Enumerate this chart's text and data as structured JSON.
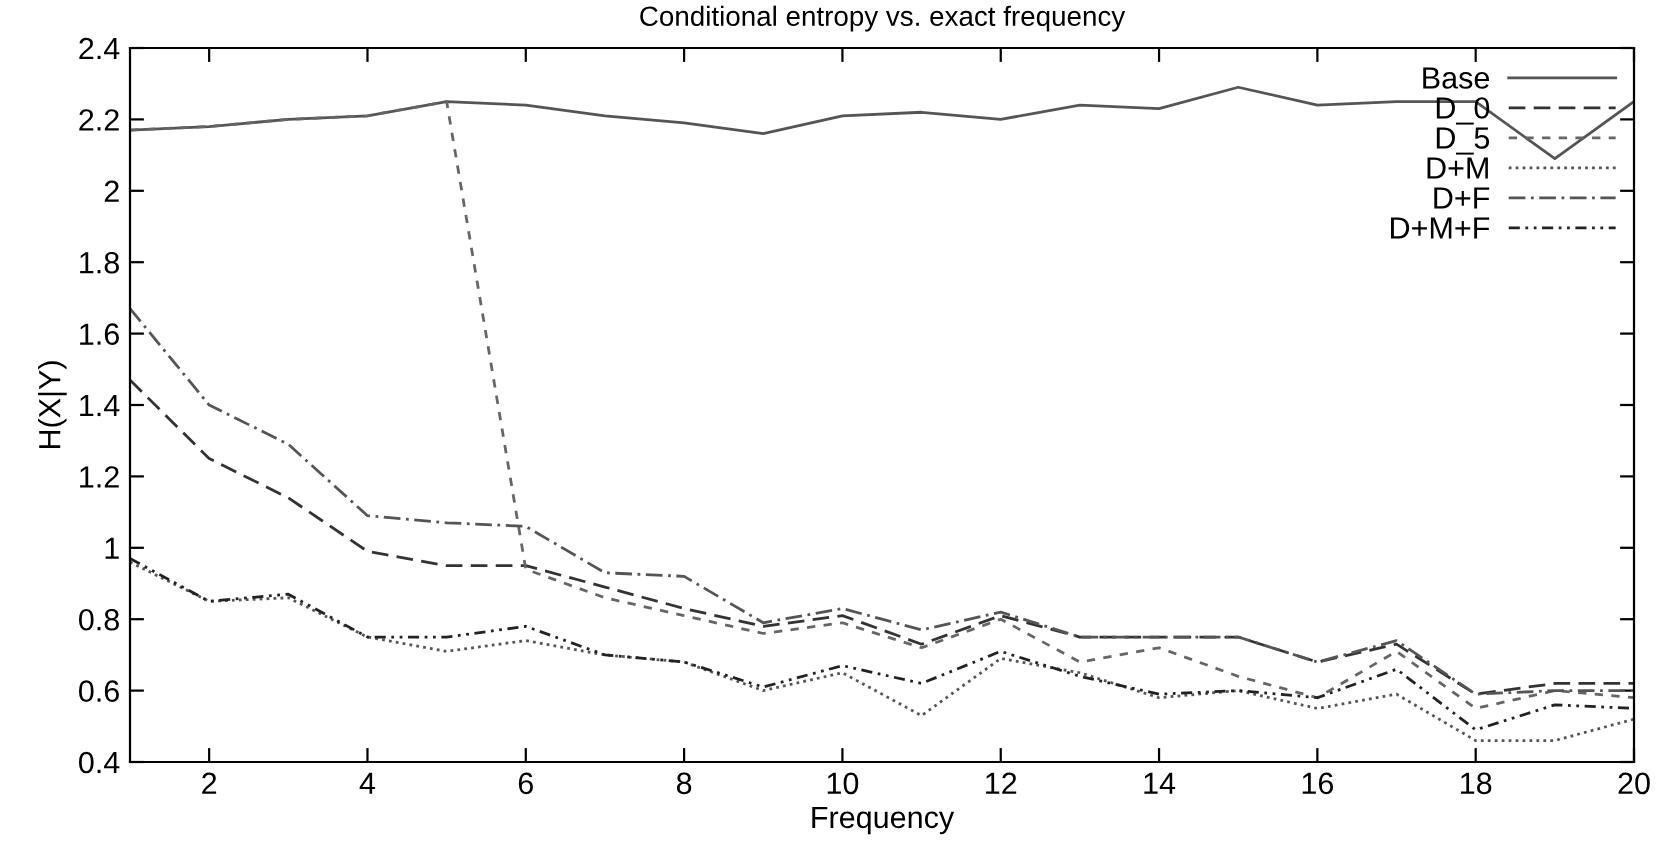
{
  "chart_data": {
    "type": "line",
    "title": "Conditional entropy vs. exact frequency",
    "xlabel": "Frequency",
    "ylabel": "H(X|Y)",
    "x": [
      1,
      2,
      3,
      4,
      5,
      6,
      7,
      8,
      9,
      10,
      11,
      12,
      13,
      14,
      15,
      16,
      17,
      18,
      19,
      20
    ],
    "series": [
      {
        "name": "Base",
        "color": "#555555",
        "line_style": "solid",
        "values": [
          2.17,
          2.18,
          2.2,
          2.21,
          2.25,
          2.24,
          2.21,
          2.19,
          2.16,
          2.21,
          2.22,
          2.2,
          2.24,
          2.23,
          2.29,
          2.24,
          2.25,
          2.25,
          2.09,
          2.25
        ]
      },
      {
        "name": "D_0",
        "color": "#333333",
        "line_style": "dashed",
        "values": [
          1.47,
          1.25,
          1.14,
          0.99,
          0.95,
          0.95,
          0.89,
          0.83,
          0.78,
          0.81,
          0.73,
          0.81,
          0.75,
          0.75,
          0.75,
          0.68,
          0.73,
          0.59,
          0.62,
          0.62
        ]
      },
      {
        "name": "D_5",
        "color": "#666666",
        "line_style": "shortdash",
        "values": [
          2.17,
          2.18,
          2.2,
          2.21,
          2.25,
          0.94,
          0.86,
          0.81,
          0.76,
          0.79,
          0.72,
          0.8,
          0.68,
          0.72,
          0.64,
          0.58,
          0.71,
          0.55,
          0.6,
          0.58
        ]
      },
      {
        "name": "D+M",
        "color": "#555555",
        "line_style": "dotted",
        "values": [
          0.96,
          0.85,
          0.86,
          0.75,
          0.71,
          0.74,
          0.7,
          0.68,
          0.6,
          0.65,
          0.53,
          0.69,
          0.65,
          0.58,
          0.6,
          0.55,
          0.59,
          0.46,
          0.46,
          0.52
        ]
      },
      {
        "name": "D+F",
        "color": "#555555",
        "line_style": "dashdot",
        "values": [
          1.67,
          1.4,
          1.29,
          1.09,
          1.07,
          1.06,
          0.93,
          0.92,
          0.79,
          0.83,
          0.77,
          0.82,
          0.75,
          0.75,
          0.75,
          0.68,
          0.74,
          0.59,
          0.6,
          0.6
        ]
      },
      {
        "name": "D+M+F",
        "color": "#222222",
        "line_style": "dashdotdot",
        "values": [
          0.97,
          0.85,
          0.87,
          0.75,
          0.75,
          0.78,
          0.7,
          0.68,
          0.61,
          0.67,
          0.62,
          0.71,
          0.64,
          0.59,
          0.6,
          0.58,
          0.66,
          0.49,
          0.56,
          0.55
        ]
      }
    ],
    "xlim": [
      1,
      20
    ],
    "xticks": [
      2,
      4,
      6,
      8,
      10,
      12,
      14,
      16,
      18,
      20
    ],
    "ylim": [
      0.4,
      2.4
    ],
    "yticks": [
      0.4,
      0.6,
      0.8,
      1,
      1.2,
      1.4,
      1.6,
      1.8,
      2,
      2.2,
      2.4
    ],
    "grid": false,
    "legend": "top right"
  }
}
